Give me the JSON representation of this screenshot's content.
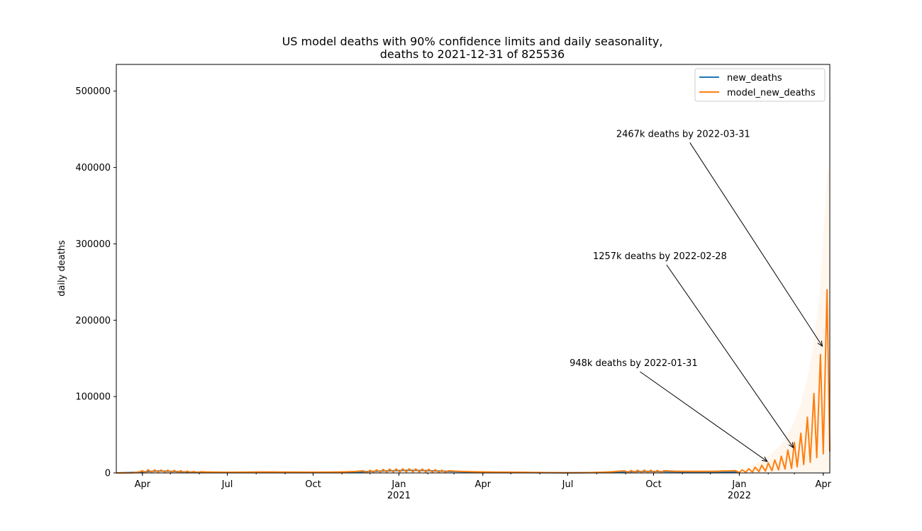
{
  "chart_data": {
    "type": "line",
    "title": "US model deaths with 90% confidence limits and daily seasonality,",
    "subtitle": "deaths to 2021-12-31 of 825536",
    "xlabel": "",
    "ylabel": "daily deaths",
    "xlim": [
      "2020-03-04",
      "2022-04-08"
    ],
    "ylim": [
      0,
      535000
    ],
    "grid": false,
    "legend_position": "top-right",
    "y_ticks": [
      0,
      100000,
      200000,
      300000,
      400000,
      500000
    ],
    "y_tick_labels": [
      "0",
      "100000",
      "200000",
      "300000",
      "400000",
      "500000"
    ],
    "x_ticks": [
      {
        "date": "2020-04-01",
        "label": "Apr",
        "year": ""
      },
      {
        "date": "2020-07-01",
        "label": "Jul",
        "year": ""
      },
      {
        "date": "2020-10-01",
        "label": "Oct",
        "year": ""
      },
      {
        "date": "2021-01-01",
        "label": "Jan",
        "year": "2021"
      },
      {
        "date": "2021-04-01",
        "label": "Apr",
        "year": ""
      },
      {
        "date": "2021-07-01",
        "label": "Jul",
        "year": ""
      },
      {
        "date": "2021-10-01",
        "label": "Oct",
        "year": ""
      },
      {
        "date": "2022-01-01",
        "label": "Jan",
        "year": "2022"
      },
      {
        "date": "2022-04-01",
        "label": "Apr",
        "year": ""
      }
    ],
    "series": [
      {
        "name": "new_deaths",
        "color": "#1f77b4",
        "points": [
          [
            "2020-03-04",
            0
          ],
          [
            "2020-03-25",
            800
          ],
          [
            "2020-04-05",
            1800
          ],
          [
            "2020-04-18",
            2500
          ],
          [
            "2020-05-01",
            2000
          ],
          [
            "2020-05-20",
            1300
          ],
          [
            "2020-06-15",
            700
          ],
          [
            "2020-07-05",
            500
          ],
          [
            "2020-07-25",
            1000
          ],
          [
            "2020-08-15",
            1100
          ],
          [
            "2020-09-15",
            800
          ],
          [
            "2020-10-15",
            700
          ],
          [
            "2020-11-15",
            1200
          ],
          [
            "2020-12-15",
            2500
          ],
          [
            "2021-01-12",
            3500
          ],
          [
            "2021-02-01",
            3000
          ],
          [
            "2021-03-01",
            1800
          ],
          [
            "2021-04-01",
            800
          ],
          [
            "2021-05-01",
            650
          ],
          [
            "2021-06-01",
            350
          ],
          [
            "2021-07-01",
            250
          ],
          [
            "2021-08-01",
            500
          ],
          [
            "2021-09-01",
            1500
          ],
          [
            "2021-09-25",
            2000
          ],
          [
            "2021-10-15",
            1600
          ],
          [
            "2021-11-15",
            1100
          ],
          [
            "2021-12-15",
            1300
          ],
          [
            "2021-12-31",
            1500
          ]
        ]
      },
      {
        "name": "model_new_deaths",
        "color": "#ff7f0e",
        "points": [
          [
            "2020-03-04",
            0
          ],
          [
            "2020-03-15",
            100
          ],
          [
            "2020-03-22",
            300
          ],
          [
            "2020-03-29",
            1500
          ],
          [
            "2020-04-01",
            3000
          ],
          [
            "2020-04-04",
            400
          ],
          [
            "2020-04-07",
            4200
          ],
          [
            "2020-04-11",
            900
          ],
          [
            "2020-04-14",
            4000
          ],
          [
            "2020-04-18",
            1000
          ],
          [
            "2020-04-21",
            3900
          ],
          [
            "2020-04-25",
            900
          ],
          [
            "2020-04-28",
            3600
          ],
          [
            "2020-05-02",
            800
          ],
          [
            "2020-05-05",
            3300
          ],
          [
            "2020-05-09",
            700
          ],
          [
            "2020-05-12",
            2900
          ],
          [
            "2020-05-16",
            600
          ],
          [
            "2020-05-19",
            2500
          ],
          [
            "2020-05-23",
            500
          ],
          [
            "2020-05-26",
            2000
          ],
          [
            "2020-05-30",
            400
          ],
          [
            "2020-06-02",
            1600
          ],
          [
            "2020-06-09",
            1300
          ],
          [
            "2020-06-16",
            1100
          ],
          [
            "2020-06-30",
            900
          ],
          [
            "2020-07-14",
            1000
          ],
          [
            "2020-07-28",
            1200
          ],
          [
            "2020-08-11",
            1300
          ],
          [
            "2020-08-25",
            1200
          ],
          [
            "2020-09-08",
            1100
          ],
          [
            "2020-09-22",
            1000
          ],
          [
            "2020-10-06",
            1000
          ],
          [
            "2020-10-20",
            1100
          ],
          [
            "2020-11-03",
            1400
          ],
          [
            "2020-11-17",
            2000
          ],
          [
            "2020-11-24",
            2800
          ],
          [
            "2020-11-28",
            700
          ],
          [
            "2020-12-01",
            3400
          ],
          [
            "2020-12-05",
            900
          ],
          [
            "2020-12-08",
            4000
          ],
          [
            "2020-12-12",
            1000
          ],
          [
            "2020-12-15",
            4600
          ],
          [
            "2020-12-19",
            1100
          ],
          [
            "2020-12-22",
            5000
          ],
          [
            "2020-12-26",
            1200
          ],
          [
            "2020-12-29",
            5200
          ],
          [
            "2021-01-02",
            1200
          ],
          [
            "2021-01-05",
            5400
          ],
          [
            "2021-01-09",
            1300
          ],
          [
            "2021-01-12",
            5500
          ],
          [
            "2021-01-16",
            1300
          ],
          [
            "2021-01-19",
            5300
          ],
          [
            "2021-01-23",
            1200
          ],
          [
            "2021-01-26",
            5200
          ],
          [
            "2021-01-30",
            1100
          ],
          [
            "2021-02-02",
            4800
          ],
          [
            "2021-02-06",
            1000
          ],
          [
            "2021-02-09",
            4300
          ],
          [
            "2021-02-13",
            900
          ],
          [
            "2021-02-16",
            3600
          ],
          [
            "2021-02-20",
            800
          ],
          [
            "2021-02-23",
            2900
          ],
          [
            "2021-03-02",
            2300
          ],
          [
            "2021-03-16",
            1800
          ],
          [
            "2021-03-30",
            1400
          ],
          [
            "2021-04-13",
            1200
          ],
          [
            "2021-04-27",
            1000
          ],
          [
            "2021-05-11",
            900
          ],
          [
            "2021-05-25",
            700
          ],
          [
            "2021-06-08",
            500
          ],
          [
            "2021-06-22",
            350
          ],
          [
            "2021-07-06",
            300
          ],
          [
            "2021-07-20",
            400
          ],
          [
            "2021-08-03",
            800
          ],
          [
            "2021-08-17",
            1500
          ],
          [
            "2021-08-24",
            2200
          ],
          [
            "2021-08-31",
            2800
          ],
          [
            "2021-09-04",
            700
          ],
          [
            "2021-09-07",
            3200
          ],
          [
            "2021-09-11",
            800
          ],
          [
            "2021-09-14",
            3500
          ],
          [
            "2021-09-18",
            900
          ],
          [
            "2021-09-21",
            3600
          ],
          [
            "2021-09-25",
            900
          ],
          [
            "2021-09-28",
            3500
          ],
          [
            "2021-10-02",
            800
          ],
          [
            "2021-10-05",
            3200
          ],
          [
            "2021-10-09",
            700
          ],
          [
            "2021-10-12",
            2900
          ],
          [
            "2021-10-19",
            2500
          ],
          [
            "2021-10-26",
            2200
          ],
          [
            "2021-11-09",
            2000
          ],
          [
            "2021-11-23",
            2000
          ],
          [
            "2021-12-07",
            2200
          ],
          [
            "2021-12-14",
            2500
          ],
          [
            "2021-12-21",
            2700
          ],
          [
            "2021-12-28",
            3000
          ],
          [
            "2022-01-01",
            600
          ],
          [
            "2022-01-04",
            4000
          ],
          [
            "2022-01-08",
            900
          ],
          [
            "2022-01-11",
            5500
          ],
          [
            "2022-01-15",
            1300
          ],
          [
            "2022-01-18",
            7500
          ],
          [
            "2022-01-22",
            1800
          ],
          [
            "2022-01-25",
            10000
          ],
          [
            "2022-01-29",
            2400
          ],
          [
            "2022-02-01",
            13000
          ],
          [
            "2022-02-05",
            3000
          ],
          [
            "2022-02-08",
            17000
          ],
          [
            "2022-02-12",
            4000
          ],
          [
            "2022-02-15",
            22000
          ],
          [
            "2022-02-19",
            5000
          ],
          [
            "2022-02-22",
            30000
          ],
          [
            "2022-02-26",
            6000
          ],
          [
            "2022-03-01",
            40000
          ],
          [
            "2022-03-04",
            8000
          ],
          [
            "2022-03-08",
            52000
          ],
          [
            "2022-03-11",
            11000
          ],
          [
            "2022-03-15",
            73000
          ],
          [
            "2022-03-18",
            14000
          ],
          [
            "2022-03-22",
            104000
          ],
          [
            "2022-03-25",
            20000
          ],
          [
            "2022-03-29",
            155000
          ],
          [
            "2022-04-01",
            25000
          ],
          [
            "2022-04-05",
            240000
          ],
          [
            "2022-04-08",
            28000
          ]
        ]
      }
    ],
    "confidence_band": [
      [
        "2022-01-11",
        8000
      ],
      [
        "2022-01-18",
        12000
      ],
      [
        "2022-01-25",
        17000
      ],
      [
        "2022-02-01",
        22000
      ],
      [
        "2022-02-08",
        29000
      ],
      [
        "2022-02-15",
        38000
      ],
      [
        "2022-02-22",
        52000
      ],
      [
        "2022-03-01",
        68000
      ],
      [
        "2022-03-08",
        90000
      ],
      [
        "2022-03-15",
        125000
      ],
      [
        "2022-03-22",
        170000
      ],
      [
        "2022-03-29",
        250000
      ],
      [
        "2022-04-05",
        390000
      ],
      [
        "2022-04-08",
        410000
      ]
    ],
    "annotations": [
      {
        "text": "948k deaths by 2022-01-31",
        "text_date": "2021-07-03",
        "text_value": 140000,
        "point_date": "2022-01-31",
        "point_value": 15000
      },
      {
        "text": "1257k deaths by 2022-02-28",
        "text_date": "2021-07-28",
        "text_value": 280000,
        "point_date": "2022-02-28",
        "point_value": 33000
      },
      {
        "text": "2467k deaths by 2022-03-31",
        "text_date": "2021-08-22",
        "text_value": 440000,
        "point_date": "2022-03-31",
        "point_value": 166000
      }
    ]
  }
}
